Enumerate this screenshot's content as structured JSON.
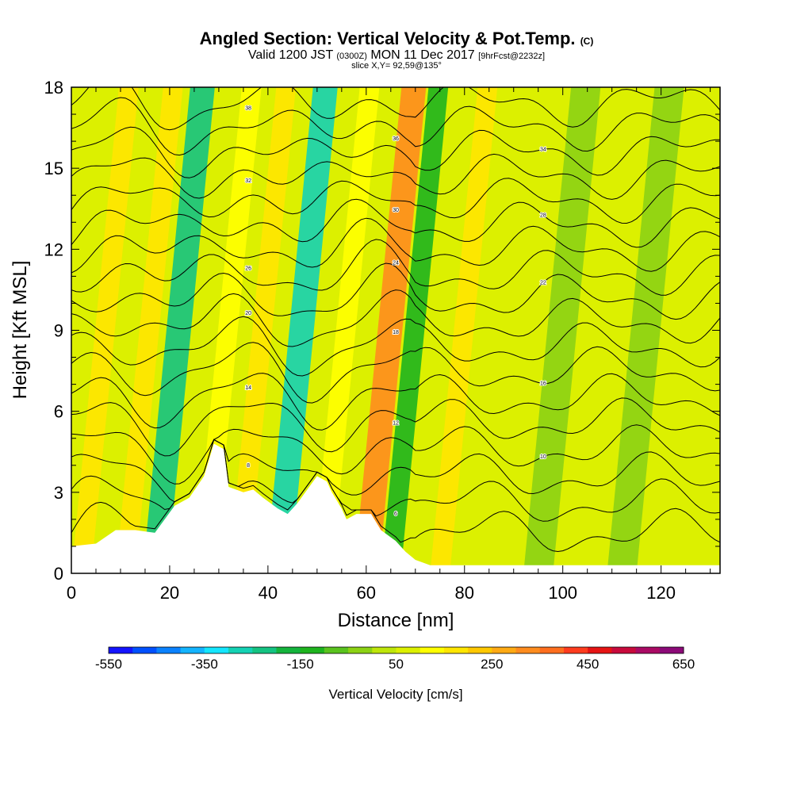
{
  "header": {
    "title": "Angled Section: Vertical Velocity & Pot.Temp.",
    "title_mark": "(C)",
    "subtitle_pre": "Valid 1200 JST",
    "subtitle_z": "(0300Z)",
    "subtitle_date": "MON 11 Dec 2017",
    "subtitle_fcst": "[9hrFcst@2232z]",
    "slice": "slice X,Y= 92,59@135°"
  },
  "chart_data": {
    "type": "heatmap",
    "xlabel": "Distance [nm]",
    "ylabel": "Height [Kft MSL]",
    "xlim": [
      0,
      132
    ],
    "ylim": [
      0,
      18
    ],
    "x_ticks": [
      0,
      20,
      40,
      60,
      80,
      100,
      120
    ],
    "y_ticks": [
      0,
      3,
      6,
      9,
      12,
      15,
      18
    ],
    "colorbar": {
      "label": "Vertical Velocity [cm/s]",
      "min": -550,
      "max": 650,
      "step": 50,
      "tick_labels": [
        "-550",
        "-350",
        "-150",
        "50",
        "250",
        "450",
        "650"
      ],
      "colors": [
        "#1414ff",
        "#0050ff",
        "#0a82ff",
        "#14b4ff",
        "#14e6ff",
        "#14d2b4",
        "#14c382",
        "#14b43c",
        "#1eb41e",
        "#5ac31e",
        "#8cd214",
        "#bee60a",
        "#dcf000",
        "#ffff00",
        "#ffe600",
        "#ffc800",
        "#ffaa14",
        "#ff8c1e",
        "#ff6e1e",
        "#ff3c1e",
        "#e61414",
        "#c80a3c",
        "#aa0a64",
        "#8c0a78"
      ]
    },
    "terrain": [
      [
        0,
        1.0
      ],
      [
        5,
        1.1
      ],
      [
        9,
        1.6
      ],
      [
        13,
        1.6
      ],
      [
        17,
        1.5
      ],
      [
        19,
        2.0
      ],
      [
        21,
        2.5
      ],
      [
        24,
        2.8
      ],
      [
        27,
        3.6
      ],
      [
        29,
        4.8
      ],
      [
        31,
        4.6
      ],
      [
        32,
        3.2
      ],
      [
        35,
        3.0
      ],
      [
        37,
        3.1
      ],
      [
        39,
        2.8
      ],
      [
        42,
        2.4
      ],
      [
        44,
        2.2
      ],
      [
        46,
        2.6
      ],
      [
        48,
        3.1
      ],
      [
        50,
        3.6
      ],
      [
        52,
        3.4
      ],
      [
        53,
        3.0
      ],
      [
        55,
        2.4
      ],
      [
        56,
        2.0
      ],
      [
        58,
        2.2
      ],
      [
        61,
        2.2
      ],
      [
        63,
        1.6
      ],
      [
        66,
        1.2
      ],
      [
        68,
        0.8
      ],
      [
        70,
        0.5
      ],
      [
        73,
        0.3
      ],
      [
        132,
        0.3
      ]
    ],
    "velocity_bands": [
      {
        "x": 2,
        "w": 4,
        "value": 150
      },
      {
        "x": 11,
        "w": 4,
        "value": 150
      },
      {
        "x": 17,
        "w": 5,
        "value": -250
      },
      {
        "x": 27,
        "w": 4,
        "value": 100
      },
      {
        "x": 34,
        "w": 4,
        "value": 150
      },
      {
        "x": 42,
        "w": 5,
        "value": -300
      },
      {
        "x": 51,
        "w": 4,
        "value": 100
      },
      {
        "x": 60,
        "w": 5,
        "value": 300
      },
      {
        "x": 65,
        "w": 4,
        "value": -150
      },
      {
        "x": 75,
        "w": 4,
        "value": 150
      },
      {
        "x": 95,
        "w": 6,
        "value": -50
      },
      {
        "x": 112,
        "w": 6,
        "value": -50
      }
    ],
    "theta_levels": [
      {
        "z": 1.5,
        "label": ""
      },
      {
        "z": 2.6,
        "label": "6"
      },
      {
        "z": 3.6,
        "label": "8"
      },
      {
        "z": 4.6,
        "label": "10"
      },
      {
        "z": 5.6,
        "label": "12"
      },
      {
        "z": 6.5,
        "label": "14"
      },
      {
        "z": 7.5,
        "label": "16"
      },
      {
        "z": 8.4,
        "label": "18"
      },
      {
        "z": 9.3,
        "label": "20"
      },
      {
        "z": 10.2,
        "label": "22"
      },
      {
        "z": 11.1,
        "label": "24"
      },
      {
        "z": 12.0,
        "label": "26"
      },
      {
        "z": 12.9,
        "label": "28"
      },
      {
        "z": 13.8,
        "label": "30"
      },
      {
        "z": 14.7,
        "label": "32"
      },
      {
        "z": 15.6,
        "label": "34"
      },
      {
        "z": 16.5,
        "label": "36"
      },
      {
        "z": 17.4,
        "label": "38"
      }
    ]
  }
}
